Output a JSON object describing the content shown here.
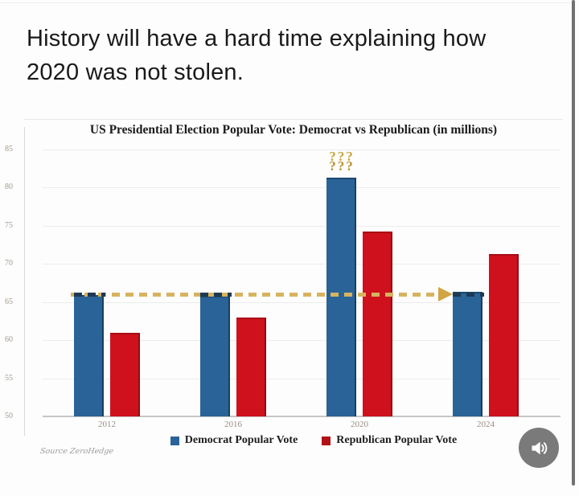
{
  "post": {
    "headline_line1": "History will have a hard time explaining how",
    "headline_line2": "2020 was not stolen."
  },
  "chart": {
    "title": "US Presidential Election Popular Vote: Democrat vs Republican (in millions)",
    "source_note": "Source ZeroHedge"
  },
  "chart_data": {
    "type": "bar",
    "title": "US Presidential Election Popular Vote: Democrat vs Republican (in millions)",
    "categories": [
      "2012",
      "2016",
      "2020",
      "2024"
    ],
    "series": [
      {
        "name": "Democrat Popular Vote",
        "color": "#2a6398",
        "values": [
          65.9,
          65.8,
          81.3,
          66.3
        ]
      },
      {
        "name": "Republican Popular Vote",
        "color": "#b01218",
        "values": [
          60.9,
          63.0,
          74.2,
          71.3
        ]
      }
    ],
    "xlabel": "",
    "ylabel": "",
    "ylim": [
      50,
      85
    ],
    "yticks": [
      50,
      55,
      60,
      65,
      70,
      75,
      80,
      85
    ],
    "grid": true,
    "legend_position": "bottom",
    "reference_line": {
      "value": 66,
      "style": "dashed-arrow",
      "color": "#d7b360",
      "arrow_color": "#d2a443"
    },
    "annotation": {
      "text": "???",
      "category": "2020",
      "series": "Democrat Popular Vote",
      "color": "#cba43c"
    }
  },
  "audio_button": {
    "icon": "speaker-on"
  }
}
